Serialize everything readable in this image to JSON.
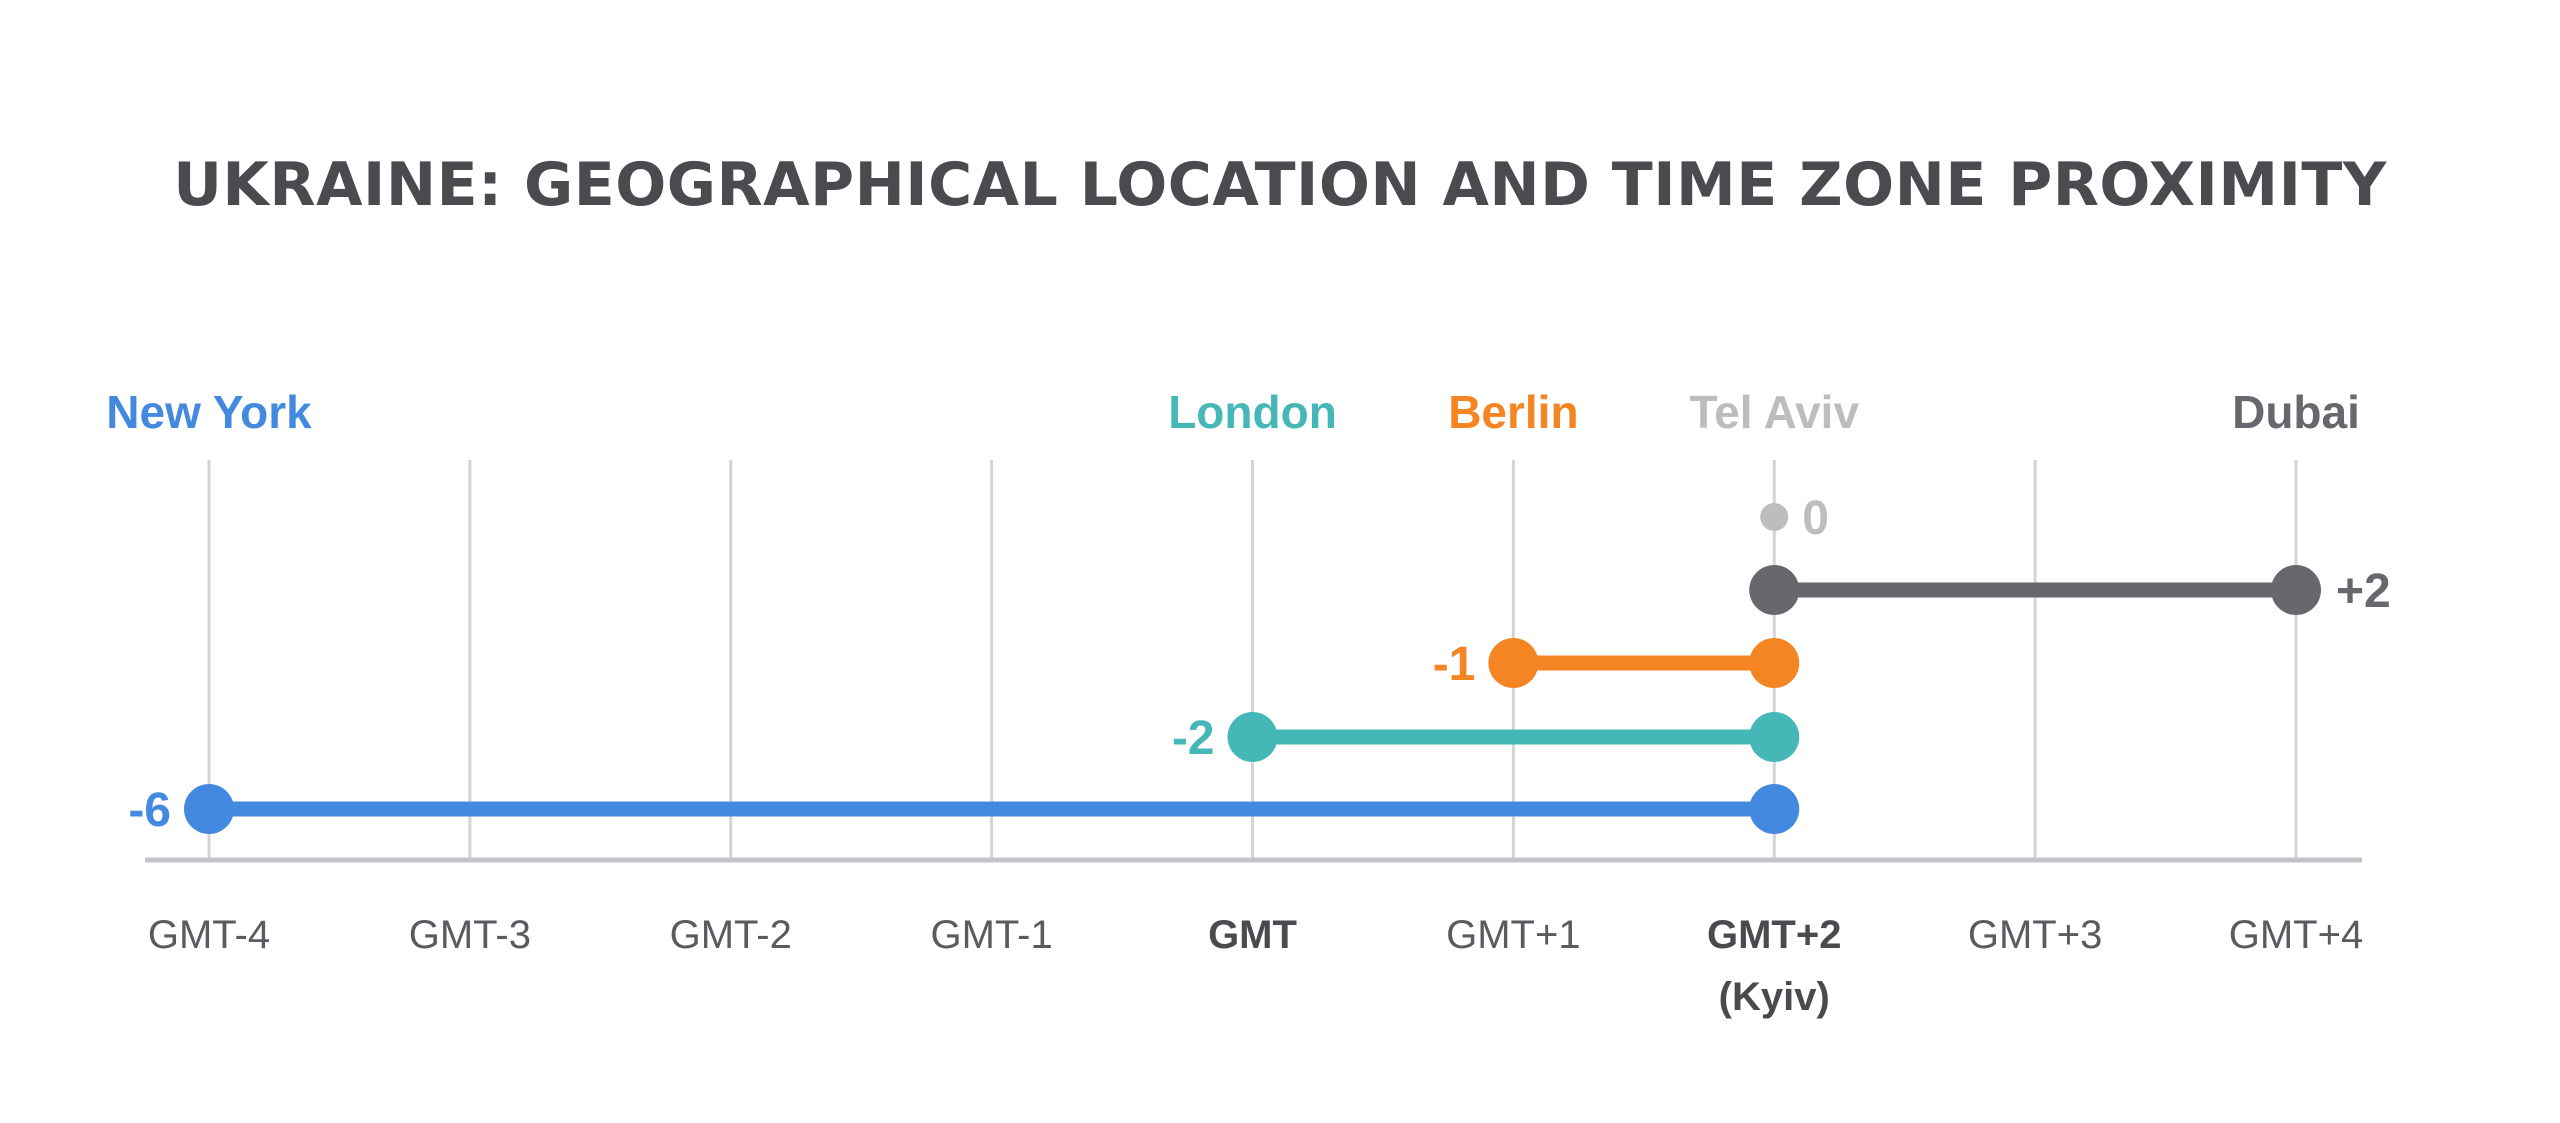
{
  "chart_data": {
    "type": "dumbbell",
    "title": "UKRAINE: GEOGRAPHICAL LOCATION AND TIME ZONE PROXIMITY",
    "reference": {
      "offset": 2,
      "label": "GMT+2",
      "sublabel": "(Kyiv)"
    },
    "ticks": [
      {
        "offset": -4,
        "label": "GMT-4",
        "bold": false
      },
      {
        "offset": -3,
        "label": "GMT-3",
        "bold": false
      },
      {
        "offset": -2,
        "label": "GMT-2",
        "bold": false
      },
      {
        "offset": -1,
        "label": "GMT-1",
        "bold": false
      },
      {
        "offset": 0,
        "label": "GMT",
        "bold": true
      },
      {
        "offset": 1,
        "label": "GMT+1",
        "bold": false
      },
      {
        "offset": 2,
        "label": "GMT+2",
        "bold": true
      },
      {
        "offset": 3,
        "label": "GMT+3",
        "bold": false
      },
      {
        "offset": 4,
        "label": "GMT+4",
        "bold": false
      }
    ],
    "xlim": [
      -4,
      4
    ],
    "series": [
      {
        "name": "New York",
        "offset": -4,
        "difference": -6,
        "diff_label": "-6",
        "color": "#4389e0"
      },
      {
        "name": "London",
        "offset": 0,
        "difference": -2,
        "diff_label": "-2",
        "color": "#45b7b7"
      },
      {
        "name": "Berlin",
        "offset": 1,
        "difference": -1,
        "diff_label": "-1",
        "color": "#f58423"
      },
      {
        "name": "Tel Aviv",
        "offset": 2,
        "difference": 0,
        "diff_label": "0",
        "color": "#bdbdbd"
      },
      {
        "name": "Dubai",
        "offset": 4,
        "difference": 2,
        "diff_label": "+2",
        "color": "#67676e"
      }
    ],
    "colors": {
      "grid": "#d4d4d8",
      "axis": "#c4c4c8",
      "text": "#4a4a4f"
    }
  }
}
